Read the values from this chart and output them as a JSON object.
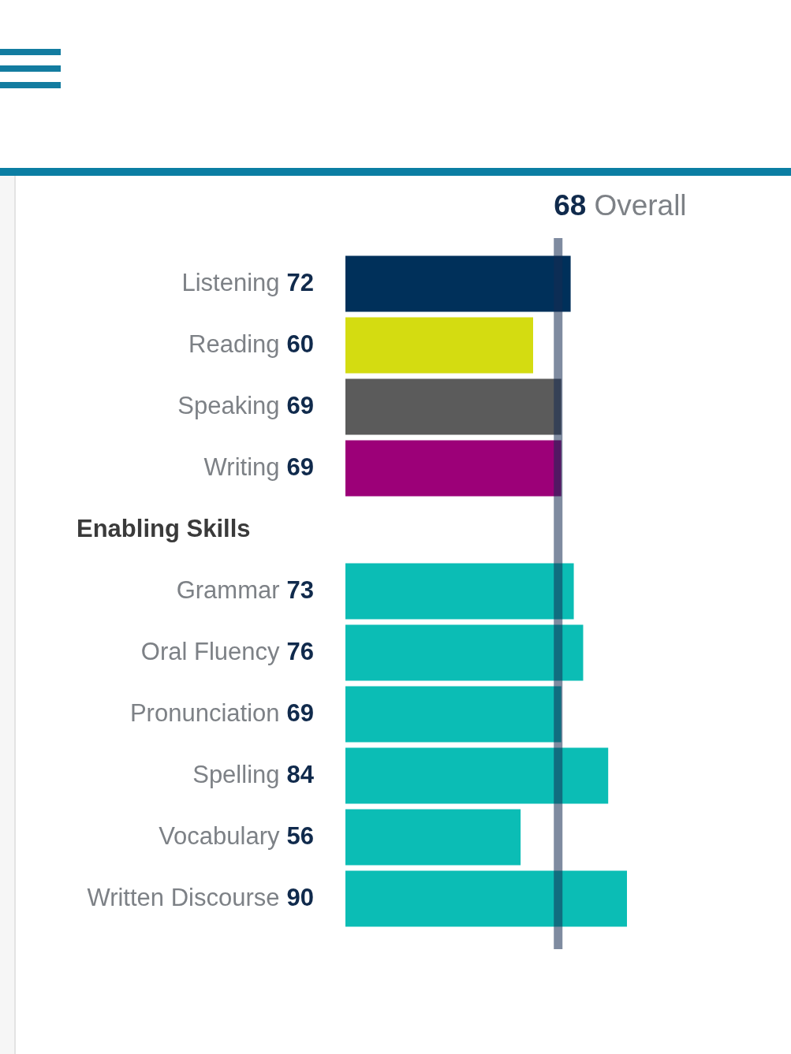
{
  "chart_data": {
    "type": "bar",
    "orientation": "horizontal",
    "categories": [
      "Listening",
      "Reading",
      "Speaking",
      "Writing",
      null,
      "Grammar",
      "Oral Fluency",
      "Pronunciation",
      "Spelling",
      "Vocabulary",
      "Written Discourse"
    ],
    "values": [
      72,
      60,
      69,
      69,
      null,
      73,
      76,
      69,
      84,
      56,
      90
    ],
    "colors": [
      "#00305a",
      "#d4dc11",
      "#5b5b5b",
      "#9c0078",
      null,
      "#0bbdb5",
      "#0bbdb5",
      "#0bbdb5",
      "#0bbdb5",
      "#0bbdb5",
      "#0bbdb5"
    ],
    "xlim": [
      0,
      90
    ],
    "ref_lines": [
      {
        "axis": "x",
        "value": 68,
        "label": "68 Overall",
        "color": "#162c52"
      }
    ],
    "annotations": [
      "Enabling Skills"
    ],
    "data_labels": true,
    "tick_labels": "y"
  }
}
